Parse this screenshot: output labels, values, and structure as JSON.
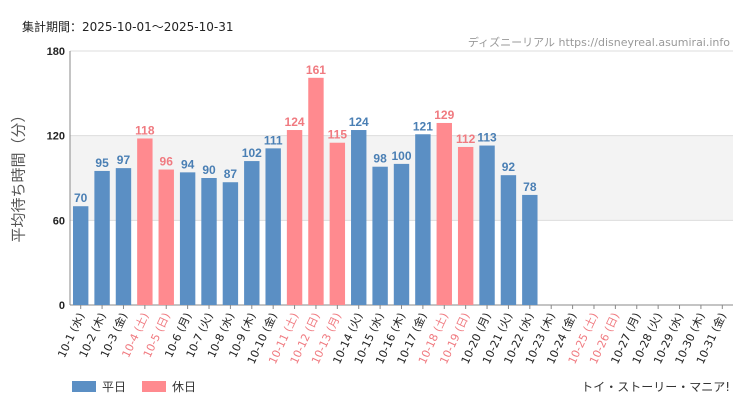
{
  "header": {
    "period": "集計期間：2025-10-01～2025-10-31",
    "credit": "ディズニーリアル https://disneyreal.asumirai.info"
  },
  "footer": {
    "title": "トイ・ストーリー・マニア!"
  },
  "colors": {
    "weekday": "#5b8fc4",
    "holiday": "#ff8a8f",
    "band": "#f3f3f3",
    "weekday_label": "#4a7fb4",
    "holiday_label": "#f07a80",
    "axis_text": "#222222"
  },
  "chart_data": {
    "type": "bar",
    "title": "",
    "ylabel": "平均待ち時間（分）",
    "xlabel": "",
    "ylim": [
      0,
      180
    ],
    "yticks": [
      "0",
      "60",
      "120",
      "180"
    ],
    "bands": [
      [
        60,
        120
      ]
    ],
    "legend": [
      {
        "name": "平日",
        "key": "weekday"
      },
      {
        "name": "休日",
        "key": "holiday"
      }
    ],
    "categories": [
      "10-1 (水)",
      "10-2 (木)",
      "10-3 (金)",
      "10-4 (土)",
      "10-5 (日)",
      "10-6 (月)",
      "10-7 (火)",
      "10-8 (水)",
      "10-9 (木)",
      "10-10 (金)",
      "10-11 (土)",
      "10-12 (日)",
      "10-13 (月)",
      "10-14 (火)",
      "10-15 (水)",
      "10-16 (木)",
      "10-17 (金)",
      "10-18 (土)",
      "10-19 (日)",
      "10-20 (月)",
      "10-21 (火)",
      "10-22 (水)",
      "10-23 (木)",
      "10-24 (金)",
      "10-25 (土)",
      "10-26 (日)",
      "10-27 (月)",
      "10-28 (火)",
      "10-29 (水)",
      "10-30 (木)",
      "10-31 (金)"
    ],
    "values": [
      70,
      95,
      97,
      118,
      96,
      94,
      90,
      87,
      102,
      111,
      124,
      161,
      115,
      124,
      98,
      100,
      121,
      129,
      112,
      113,
      92,
      78,
      null,
      null,
      null,
      null,
      null,
      null,
      null,
      null,
      null
    ],
    "holiday": [
      false,
      false,
      false,
      true,
      true,
      false,
      false,
      false,
      false,
      false,
      true,
      true,
      true,
      false,
      false,
      false,
      false,
      true,
      true,
      false,
      false,
      false,
      false,
      false,
      true,
      true,
      false,
      false,
      false,
      false,
      false
    ]
  }
}
